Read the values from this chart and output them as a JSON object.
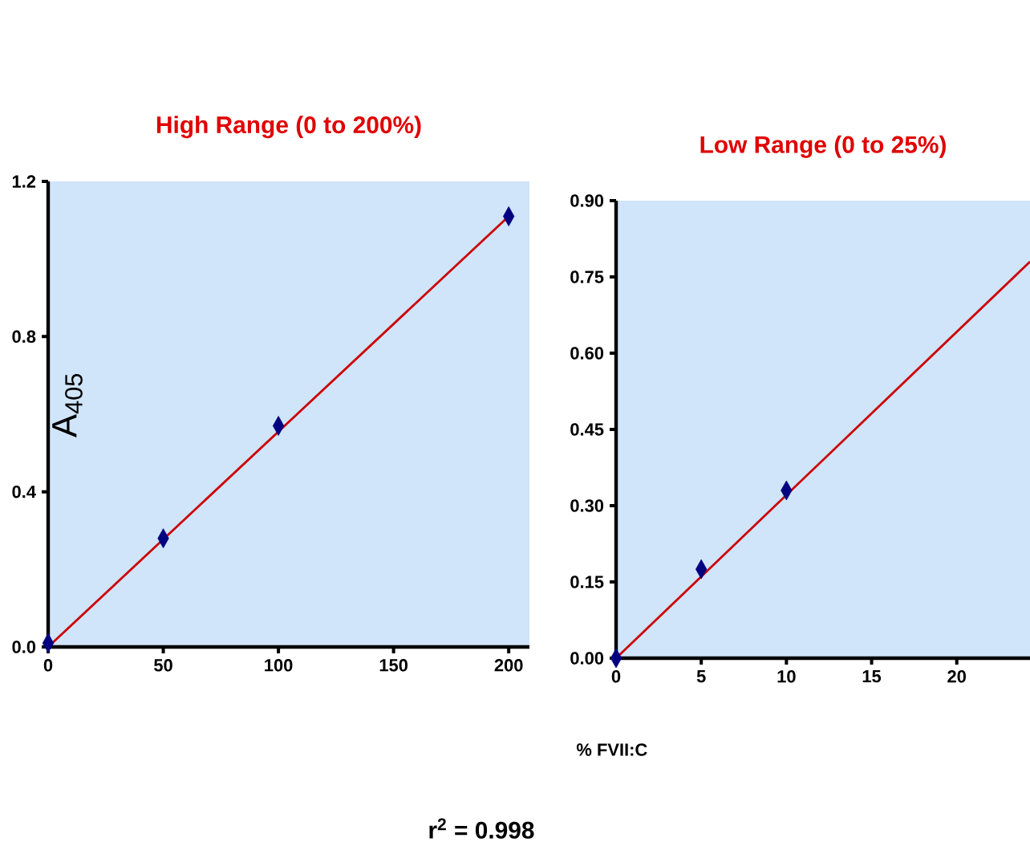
{
  "chart_data": [
    {
      "type": "scatter",
      "title": "High Range (0 to 200%)",
      "ylabel": "A$_{405}$",
      "annotations": [
        "r$^{2}$ = 0.998"
      ],
      "xlim": [
        0,
        209
      ],
      "ylim": [
        0,
        1.2
      ],
      "xticks": [
        0,
        50,
        100,
        150,
        200
      ],
      "yticks": [
        {
          "value": 0,
          "label": "0.0"
        },
        0.4,
        0.8,
        1.2
      ],
      "series": [
        {
          "color": "#000080",
          "marker": "diamond",
          "x": [
            0,
            50,
            100,
            200
          ],
          "values": [
            0.01,
            0.28,
            0.57,
            1.11
          ]
        },
        {
          "type": "line",
          "marker": "none",
          "color": "#cc0000",
          "x": [
            0,
            200
          ],
          "values": [
            0,
            1.11
          ]
        }
      ]
    },
    {
      "type": "scatter",
      "title": "Low Range  (0 to 25%)",
      "xlabel": "% FVII:C",
      "xlim": [
        0,
        24.3
      ],
      "ylim": [
        0,
        0.9
      ],
      "xticks": [
        0,
        5,
        10,
        15,
        20
      ],
      "yticks": [
        {
          "value": 0,
          "label": "0.00"
        },
        0.15,
        {
          "value": 0.3,
          "label": "0.30"
        },
        0.45,
        {
          "value": 0.6,
          "label": "0.60"
        },
        0.75,
        {
          "value": 0.9,
          "label": "0.90"
        }
      ],
      "series": [
        {
          "color": "#000080",
          "marker": "diamond",
          "x": [
            0,
            5,
            10
          ],
          "values": [
            0.0,
            0.175,
            0.33
          ]
        },
        {
          "type": "line",
          "marker": "none",
          "color": "#cc0000",
          "x": [
            0,
            24.3
          ],
          "values": [
            0,
            0.78
          ]
        }
      ]
    }
  ]
}
